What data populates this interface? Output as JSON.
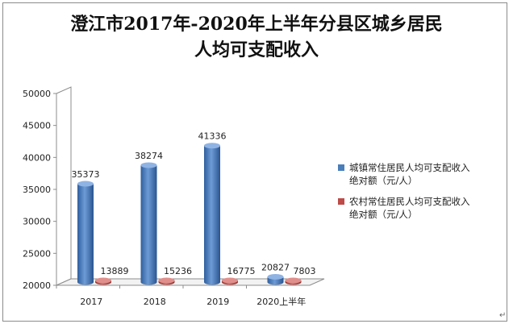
{
  "chart_data": {
    "type": "bar",
    "title_line1": "澄江市2017年-2020年上半年分县区城乡居民",
    "title_line2": "人均可支配收入",
    "categories": [
      "2017",
      "2018",
      "2019",
      "2020上半年"
    ],
    "series": [
      {
        "name": "城镇常住居民人均可支配收入绝对额（元/人）",
        "name_line1": "城镇常住居民人均可支配收入",
        "name_line2": "绝对额（元/人）",
        "color": "#4a7ebb",
        "values": [
          35373,
          38274,
          41336,
          20827
        ],
        "labels": [
          "35373",
          "38274",
          "41336",
          "20827"
        ]
      },
      {
        "name": "农村常住居民人均可支配收入绝对额（元/人）",
        "name_line1": "农村常住居民人均可支配收入",
        "name_line2": "绝对额（元/人）",
        "color": "#be4b48",
        "values": [
          13889,
          15236,
          16775,
          7803
        ],
        "labels": [
          "13889",
          "15236",
          "16775",
          "7803"
        ]
      }
    ],
    "yticks": [
      "20000",
      "25000",
      "30000",
      "35000",
      "40000",
      "45000",
      "50000"
    ],
    "ylim": [
      20000,
      50000
    ],
    "grid": false,
    "legend_position": "right",
    "style": "3d-cylinder"
  },
  "doc": {
    "paragraph_mark": "↵"
  }
}
